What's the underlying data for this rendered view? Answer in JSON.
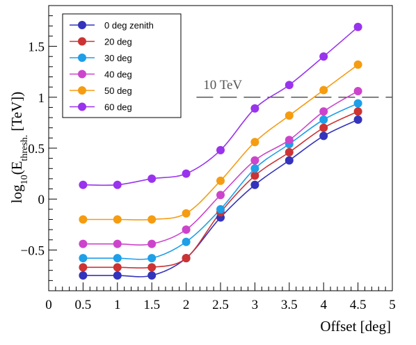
{
  "chart_data": {
    "type": "line",
    "xlabel": "Offset [deg]",
    "ylabel": {
      "prefix": "log",
      "sub": "10",
      "open": "(E",
      "sub2": "thresh.",
      "close": " [TeV])"
    },
    "xlim": [
      0,
      5
    ],
    "ylim": [
      -0.9,
      1.9
    ],
    "xticks": [
      0,
      0.5,
      1,
      1.5,
      2,
      2.5,
      3,
      3.5,
      4,
      4.5,
      5
    ],
    "xtick_labels": [
      "0",
      "0.5",
      "1",
      "1.5",
      "2",
      "2.5",
      "3",
      "3.5",
      "4",
      "4.5",
      "5"
    ],
    "yticks": [
      -0.5,
      0,
      0.5,
      1,
      1.5
    ],
    "ytick_labels": [
      "−0.5",
      "0",
      "0.5",
      "1",
      "1.5"
    ],
    "grid": false,
    "legend_position": "top-left",
    "x": [
      0.5,
      1.0,
      1.5,
      2.0,
      2.5,
      3.0,
      3.5,
      4.0,
      4.5
    ],
    "series": [
      {
        "name": "0 deg zenith",
        "color": "#3333bb",
        "values": [
          -0.75,
          -0.75,
          -0.75,
          -0.58,
          -0.18,
          0.14,
          0.38,
          0.62,
          0.78
        ]
      },
      {
        "name": "20 deg",
        "color": "#cc3333",
        "values": [
          -0.67,
          -0.67,
          -0.67,
          -0.58,
          -0.13,
          0.23,
          0.46,
          0.7,
          0.86
        ]
      },
      {
        "name": "30 deg",
        "color": "#1e9fe8",
        "values": [
          -0.58,
          -0.58,
          -0.58,
          -0.42,
          -0.1,
          0.3,
          0.54,
          0.78,
          0.94
        ]
      },
      {
        "name": "40 deg",
        "color": "#cc44cc",
        "values": [
          -0.44,
          -0.44,
          -0.44,
          -0.3,
          0.04,
          0.38,
          0.58,
          0.86,
          1.06
        ]
      },
      {
        "name": "50 deg",
        "color": "#f59c10",
        "values": [
          -0.2,
          -0.2,
          -0.2,
          -0.14,
          0.18,
          0.56,
          0.82,
          1.07,
          1.32
        ]
      },
      {
        "name": "60 deg",
        "color": "#9933ee",
        "values": [
          0.14,
          0.14,
          0.2,
          0.25,
          0.48,
          0.89,
          1.12,
          1.4,
          1.69
        ]
      }
    ],
    "reference_line": {
      "y": 1,
      "label": "10 TeV",
      "color": "#555555"
    }
  }
}
